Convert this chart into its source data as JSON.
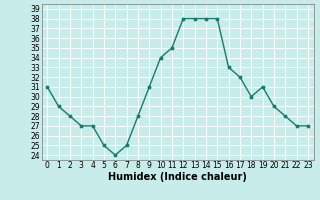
{
  "x": [
    0,
    1,
    2,
    3,
    4,
    5,
    6,
    7,
    8,
    9,
    10,
    11,
    12,
    13,
    14,
    15,
    16,
    17,
    18,
    19,
    20,
    21,
    22,
    23
  ],
  "y": [
    31,
    29,
    28,
    27,
    27,
    25,
    24,
    25,
    28,
    31,
    34,
    35,
    38,
    38,
    38,
    38,
    33,
    32,
    30,
    31,
    29,
    28,
    27,
    27
  ],
  "line_color": "#1a7a6e",
  "marker": "o",
  "markersize": 1.8,
  "linewidth": 1.0,
  "xlabel": "Humidex (Indice chaleur)",
  "xlim": [
    -0.5,
    23.5
  ],
  "ylim": [
    23.5,
    39.5
  ],
  "yticks": [
    24,
    25,
    26,
    27,
    28,
    29,
    30,
    31,
    32,
    33,
    34,
    35,
    36,
    37,
    38,
    39
  ],
  "xticks": [
    0,
    1,
    2,
    3,
    4,
    5,
    6,
    7,
    8,
    9,
    10,
    11,
    12,
    13,
    14,
    15,
    16,
    17,
    18,
    19,
    20,
    21,
    22,
    23
  ],
  "xtick_labels": [
    "0",
    "1",
    "2",
    "3",
    "4",
    "5",
    "6",
    "7",
    "8",
    "9",
    "10",
    "11",
    "12",
    "13",
    "14",
    "15",
    "16",
    "17",
    "18",
    "19",
    "20",
    "21",
    "22",
    "23"
  ],
  "bg_color": "#c8ecea",
  "grid_color": "#ffffff",
  "xlabel_fontsize": 7,
  "tick_fontsize": 5.5
}
